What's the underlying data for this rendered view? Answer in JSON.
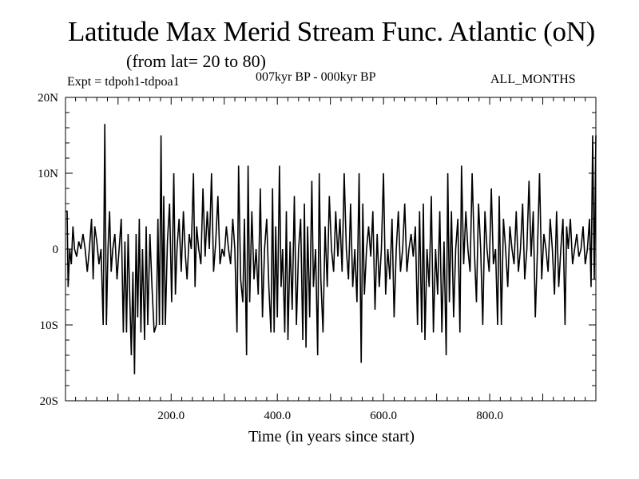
{
  "header": {
    "title": "Latitude Max Merid Stream Func. Atlantic (oN)",
    "subtitle": "(from lat= 20 to 80)",
    "experiment": "Expt = tdpoh1-tdpoa1",
    "period": "007kyr BP - 000kyr BP",
    "months": "ALL_MONTHS"
  },
  "chart_data": {
    "type": "line",
    "title": "Latitude Max Merid Stream Func. Atlantic (oN)",
    "xlabel": "Time (in years since start)",
    "ylabel": "",
    "xlim": [
      1,
      1000
    ],
    "ylim": [
      -20,
      20
    ],
    "x_ticks": [
      {
        "value": 200,
        "label": "200.0"
      },
      {
        "value": 400,
        "label": "400.0"
      },
      {
        "value": 600,
        "label": "600.0"
      },
      {
        "value": 800,
        "label": "800.0"
      }
    ],
    "y_ticks": [
      {
        "value": 20,
        "label": "20N"
      },
      {
        "value": 10,
        "label": "10N"
      },
      {
        "value": 0,
        "label": "0"
      },
      {
        "value": -10,
        "label": "10S"
      },
      {
        "value": -20,
        "label": "20S"
      }
    ],
    "series": [
      {
        "name": "tdpoh1-tdpoa1",
        "points": [
          [
            1,
            5
          ],
          [
            4,
            5
          ],
          [
            6,
            -5
          ],
          [
            9,
            0
          ],
          [
            12,
            -2
          ],
          [
            15,
            3
          ],
          [
            18,
            0
          ],
          [
            22,
            -1
          ],
          [
            26,
            1
          ],
          [
            30,
            0
          ],
          [
            34,
            2
          ],
          [
            38,
            0
          ],
          [
            42,
            -3
          ],
          [
            46,
            0
          ],
          [
            50,
            4
          ],
          [
            53,
            -4
          ],
          [
            56,
            3
          ],
          [
            60,
            1
          ],
          [
            64,
            -2
          ],
          [
            68,
            0
          ],
          [
            72,
            -10
          ],
          [
            75,
            16.5
          ],
          [
            78,
            -10
          ],
          [
            81,
            0
          ],
          [
            84,
            5
          ],
          [
            87,
            -3
          ],
          [
            90,
            0
          ],
          [
            94,
            2
          ],
          [
            98,
            -4
          ],
          [
            102,
            0
          ],
          [
            106,
            4
          ],
          [
            110,
            -11
          ],
          [
            113,
            1
          ],
          [
            116,
            -11
          ],
          [
            119,
            2
          ],
          [
            122,
            -6
          ],
          [
            125,
            -14
          ],
          [
            128,
            -3
          ],
          [
            131,
            -16.5
          ],
          [
            134,
            2
          ],
          [
            137,
            -9
          ],
          [
            140,
            4
          ],
          [
            143,
            -11
          ],
          [
            146,
            0
          ],
          [
            150,
            -12
          ],
          [
            153,
            3
          ],
          [
            156,
            -10
          ],
          [
            160,
            2
          ],
          [
            164,
            -5
          ],
          [
            168,
            -11
          ],
          [
            172,
            -10
          ],
          [
            175,
            4
          ],
          [
            178,
            -10
          ],
          [
            181,
            15
          ],
          [
            184,
            -10
          ],
          [
            186,
            7
          ],
          [
            189,
            -10
          ],
          [
            193,
            1
          ],
          [
            197,
            6
          ],
          [
            201,
            -7
          ],
          [
            205,
            10
          ],
          [
            208,
            -6
          ],
          [
            211,
            0
          ],
          [
            215,
            4
          ],
          [
            219,
            -3
          ],
          [
            223,
            5
          ],
          [
            227,
            -1
          ],
          [
            230,
            -4
          ],
          [
            234,
            2
          ],
          [
            238,
            0
          ],
          [
            242,
            10
          ],
          [
            245,
            -5
          ],
          [
            248,
            3
          ],
          [
            252,
            0
          ],
          [
            256,
            -2
          ],
          [
            260,
            8
          ],
          [
            264,
            -1
          ],
          [
            268,
            5
          ],
          [
            272,
            0
          ],
          [
            276,
            10
          ],
          [
            280,
            -3
          ],
          [
            284,
            1
          ],
          [
            288,
            7
          ],
          [
            292,
            -2
          ],
          [
            296,
            0
          ],
          [
            300,
            -1
          ],
          [
            304,
            3
          ],
          [
            308,
            0
          ],
          [
            312,
            -2
          ],
          [
            316,
            4
          ],
          [
            320,
            0
          ],
          [
            324,
            -11
          ],
          [
            327,
            11
          ],
          [
            331,
            -4
          ],
          [
            335,
            -7
          ],
          [
            338,
            4
          ],
          [
            342,
            -14
          ],
          [
            345,
            11
          ],
          [
            348,
            -7
          ],
          [
            352,
            5
          ],
          [
            356,
            -4
          ],
          [
            360,
            0
          ],
          [
            364,
            -6
          ],
          [
            368,
            8
          ],
          [
            372,
            -9
          ],
          [
            376,
            0
          ],
          [
            380,
            4
          ],
          [
            384,
            -5
          ],
          [
            388,
            -11
          ],
          [
            391,
            8
          ],
          [
            394,
            -11
          ],
          [
            397,
            3
          ],
          [
            400,
            -9
          ],
          [
            404,
            11
          ],
          [
            407,
            -5
          ],
          [
            410,
            0
          ],
          [
            414,
            -11
          ],
          [
            417,
            5
          ],
          [
            420,
            -12
          ],
          [
            424,
            1
          ],
          [
            428,
            -8
          ],
          [
            432,
            7
          ],
          [
            436,
            -10
          ],
          [
            440,
            0
          ],
          [
            444,
            4
          ],
          [
            448,
            -12
          ],
          [
            451,
            6
          ],
          [
            454,
            -13
          ],
          [
            457,
            3
          ],
          [
            461,
            -9
          ],
          [
            465,
            9
          ],
          [
            468,
            -5
          ],
          [
            472,
            0
          ],
          [
            476,
            -14
          ],
          [
            479,
            10
          ],
          [
            482,
            -4
          ],
          [
            486,
            -11
          ],
          [
            490,
            3
          ],
          [
            494,
            -5
          ],
          [
            498,
            7
          ],
          [
            502,
            0
          ],
          [
            506,
            -3
          ],
          [
            510,
            5
          ],
          [
            514,
            -1
          ],
          [
            518,
            4
          ],
          [
            522,
            -3
          ],
          [
            526,
            10
          ],
          [
            530,
            0
          ],
          [
            534,
            -4
          ],
          [
            538,
            6
          ],
          [
            542,
            -5
          ],
          [
            546,
            0
          ],
          [
            550,
            -7
          ],
          [
            554,
            10
          ],
          [
            558,
            -15
          ],
          [
            561,
            6
          ],
          [
            564,
            -6
          ],
          [
            568,
            0
          ],
          [
            572,
            3
          ],
          [
            576,
            -1
          ],
          [
            580,
            5
          ],
          [
            584,
            -8
          ],
          [
            588,
            2
          ],
          [
            592,
            -5
          ],
          [
            596,
            0
          ],
          [
            600,
            10
          ],
          [
            604,
            -6
          ],
          [
            608,
            0
          ],
          [
            612,
            -4
          ],
          [
            616,
            4
          ],
          [
            620,
            -9
          ],
          [
            624,
            0
          ],
          [
            628,
            5
          ],
          [
            632,
            -3
          ],
          [
            636,
            0
          ],
          [
            640,
            6
          ],
          [
            644,
            -3
          ],
          [
            648,
            0
          ],
          [
            652,
            2
          ],
          [
            656,
            -1
          ],
          [
            660,
            3
          ],
          [
            664,
            -10
          ],
          [
            668,
            5
          ],
          [
            672,
            -11
          ],
          [
            675,
            6
          ],
          [
            678,
            -12
          ],
          [
            682,
            0
          ],
          [
            686,
            -5
          ],
          [
            690,
            7
          ],
          [
            694,
            -11
          ],
          [
            698,
            0
          ],
          [
            702,
            -6
          ],
          [
            706,
            5
          ],
          [
            710,
            -11
          ],
          [
            714,
            1
          ],
          [
            718,
            -14
          ],
          [
            721,
            10
          ],
          [
            724,
            -7
          ],
          [
            728,
            5
          ],
          [
            732,
            -9
          ],
          [
            736,
            0
          ],
          [
            740,
            4
          ],
          [
            744,
            -11
          ],
          [
            747,
            11
          ],
          [
            751,
            -2
          ],
          [
            755,
            5
          ],
          [
            759,
            0
          ],
          [
            763,
            -3
          ],
          [
            767,
            10
          ],
          [
            771,
            0
          ],
          [
            775,
            -7
          ],
          [
            779,
            6
          ],
          [
            783,
            0
          ],
          [
            787,
            -10
          ],
          [
            791,
            5
          ],
          [
            795,
            0
          ],
          [
            799,
            -3
          ],
          [
            803,
            8
          ],
          [
            807,
            -2
          ],
          [
            811,
            0
          ],
          [
            815,
            -10
          ],
          [
            818,
            7
          ],
          [
            822,
            -10
          ],
          [
            826,
            4
          ],
          [
            830,
            0
          ],
          [
            834,
            -5
          ],
          [
            838,
            3
          ],
          [
            842,
            0
          ],
          [
            846,
            -2
          ],
          [
            850,
            5
          ],
          [
            854,
            -3
          ],
          [
            858,
            0
          ],
          [
            862,
            6
          ],
          [
            866,
            -4
          ],
          [
            870,
            0
          ],
          [
            874,
            9
          ],
          [
            878,
            -1
          ],
          [
            882,
            5
          ],
          [
            886,
            -9
          ],
          [
            890,
            0
          ],
          [
            894,
            10
          ],
          [
            898,
            -4
          ],
          [
            902,
            2
          ],
          [
            906,
            0
          ],
          [
            910,
            -3
          ],
          [
            914,
            4
          ],
          [
            918,
            0
          ],
          [
            922,
            -6
          ],
          [
            926,
            5
          ],
          [
            930,
            -5
          ],
          [
            934,
            0
          ],
          [
            938,
            4
          ],
          [
            942,
            -10
          ],
          [
            945,
            3
          ],
          [
            948,
            0
          ],
          [
            952,
            4
          ],
          [
            956,
            -2
          ],
          [
            960,
            0
          ],
          [
            964,
            2
          ],
          [
            968,
            -1
          ],
          [
            972,
            0
          ],
          [
            976,
            3
          ],
          [
            980,
            -2
          ],
          [
            984,
            0
          ],
          [
            988,
            4
          ],
          [
            991,
            -5
          ],
          [
            994,
            15
          ],
          [
            997,
            -4
          ],
          [
            1000,
            15
          ]
        ]
      }
    ]
  }
}
